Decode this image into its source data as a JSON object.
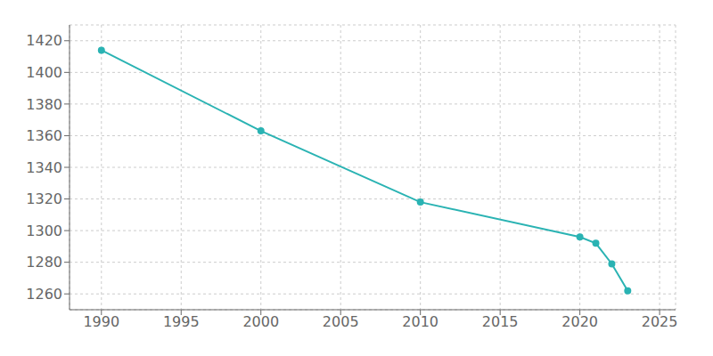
{
  "chart_data": {
    "type": "line",
    "x": [
      1990,
      2000,
      2010,
      2020,
      2021,
      2022,
      2023
    ],
    "values": [
      1414,
      1363,
      1318,
      1296,
      1292,
      1279,
      1262
    ],
    "color": "#2ab3b3",
    "marker": "circle",
    "xlim": [
      1988,
      2026
    ],
    "ylim": [
      1250,
      1430
    ],
    "xticks": [
      1990,
      1995,
      2000,
      2005,
      2010,
      2015,
      2020,
      2025
    ],
    "yticks": [
      1260,
      1280,
      1300,
      1320,
      1340,
      1360,
      1380,
      1400,
      1420
    ],
    "grid": true
  }
}
